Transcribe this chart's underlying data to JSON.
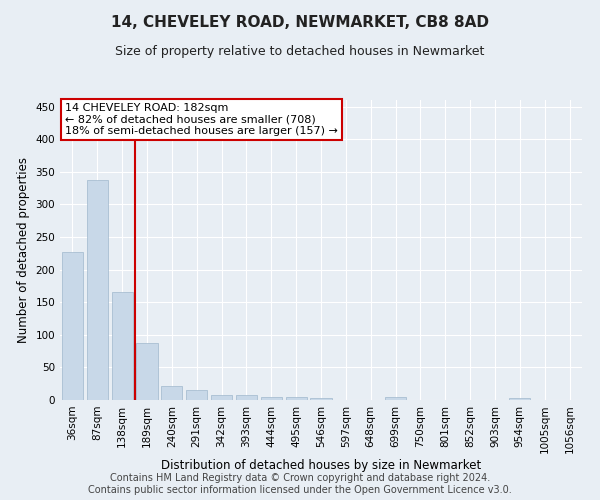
{
  "title": "14, CHEVELEY ROAD, NEWMARKET, CB8 8AD",
  "subtitle": "Size of property relative to detached houses in Newmarket",
  "xlabel": "Distribution of detached houses by size in Newmarket",
  "ylabel": "Number of detached properties",
  "bar_color": "#c8d8e8",
  "bar_edge_color": "#a0b8cc",
  "categories": [
    "36sqm",
    "87sqm",
    "138sqm",
    "189sqm",
    "240sqm",
    "291sqm",
    "342sqm",
    "393sqm",
    "444sqm",
    "495sqm",
    "546sqm",
    "597sqm",
    "648sqm",
    "699sqm",
    "750sqm",
    "801sqm",
    "852sqm",
    "903sqm",
    "954sqm",
    "1005sqm",
    "1056sqm"
  ],
  "values": [
    227,
    337,
    165,
    88,
    22,
    15,
    7,
    8,
    5,
    4,
    3,
    0,
    0,
    4,
    0,
    0,
    0,
    0,
    3,
    0,
    0
  ],
  "vline_x": 2.5,
  "annotation_line1": "14 CHEVELEY ROAD: 182sqm",
  "annotation_line2": "← 82% of detached houses are smaller (708)",
  "annotation_line3": "18% of semi-detached houses are larger (157) →",
  "vline_color": "#cc0000",
  "annotation_box_color": "#cc0000",
  "ylim": [
    0,
    460
  ],
  "yticks": [
    0,
    50,
    100,
    150,
    200,
    250,
    300,
    350,
    400,
    450
  ],
  "footer_line1": "Contains HM Land Registry data © Crown copyright and database right 2024.",
  "footer_line2": "Contains public sector information licensed under the Open Government Licence v3.0.",
  "background_color": "#e8eef4",
  "grid_color": "#ffffff",
  "title_fontsize": 11,
  "subtitle_fontsize": 9,
  "axis_label_fontsize": 8.5,
  "tick_fontsize": 7.5,
  "footer_fontsize": 7,
  "annotation_fontsize": 8
}
